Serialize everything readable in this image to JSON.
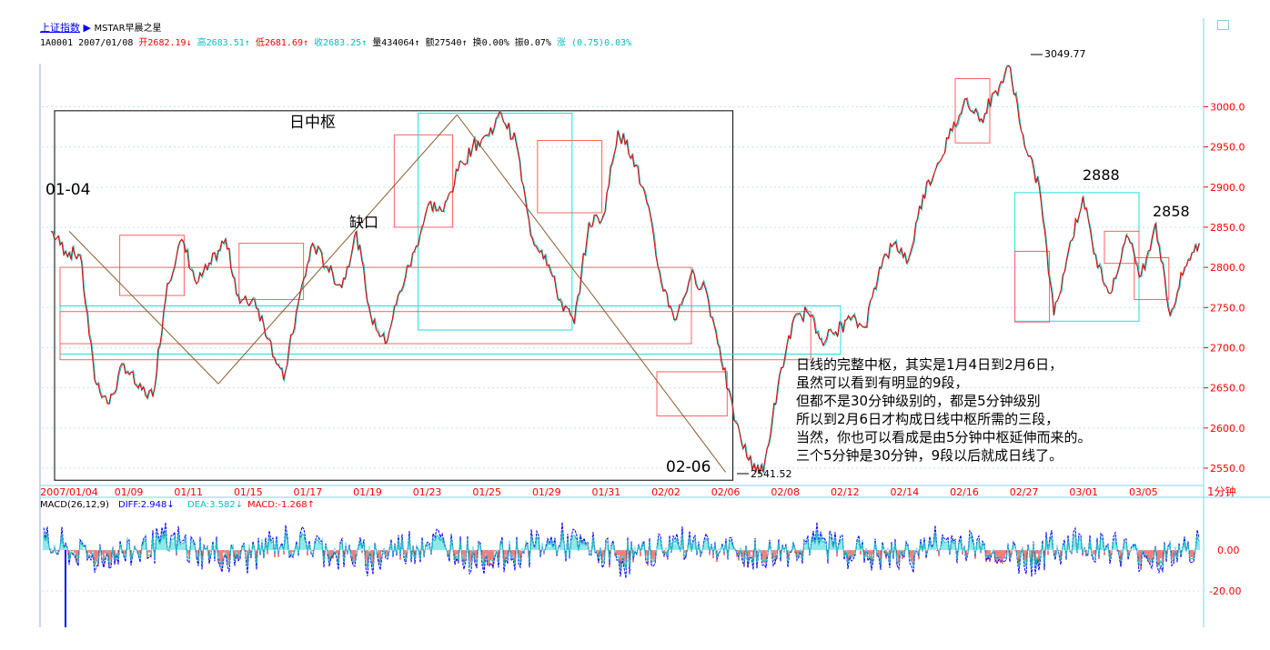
{
  "header": {
    "index_link": "上证指数",
    "arrow": "▶",
    "source": "MSTAR早晨之星",
    "code": "1A0001",
    "date": "2007/01/08",
    "open_label": "开",
    "open_value": "2682.19",
    "open_dir": "↓",
    "high_label": "高",
    "high_value": "2683.51",
    "high_dir": "↑",
    "low_label": "低",
    "low_value": "2681.69",
    "low_dir": "↑",
    "close_label": "收",
    "close_value": "2683.25",
    "close_dir": "↑",
    "vol_label": "量",
    "vol_value": "434064",
    "vol_dir": "↑",
    "amt_label": "额",
    "amt_value": "27540",
    "amt_dir": "↑",
    "turn_label": "换",
    "turn_value": "0.00%",
    "amp_label": "振",
    "amp_value": "0.07%",
    "chg_label": "涨",
    "chg_value": "(0.75)0.03%"
  },
  "annotations": {
    "day_center": "日中枢",
    "gap": "缺口",
    "start": "01-04",
    "end": "02-06",
    "high_2888": "2888",
    "high_2858": "2858",
    "max_label": "3049.77",
    "min_label": "2541.52",
    "note_lines": [
      "日线的完整中枢，其实是1月4日到2月6日，",
      "虽然可以看到有明显的9段，",
      "但都不是30分钟级别的，都是5分钟级别",
      "所以到2月6日才构成日线中枢所需的三段，",
      "当然，你也可以看成是由5分钟中枢延伸而来的。",
      "三个5分钟是30分钟，9段以后就成日线了。"
    ]
  },
  "period_label": "1分钟",
  "macd": {
    "label": "MACD(26,12,9)",
    "diff_label": "DIFF:",
    "diff_value": "2.948",
    "diff_dir": "↓",
    "dea_label": "DEA:",
    "dea_value": "3.582",
    "dea_dir": "↓",
    "macd_label": "MACD:",
    "macd_value": "-1.268",
    "macd_dir": "↑",
    "y_ticks": [
      "0.00",
      "-20.00"
    ]
  },
  "chart_data": {
    "type": "line",
    "title": "",
    "x_labels": [
      "2007/01/04",
      "01/09",
      "01/11",
      "01/15",
      "01/17",
      "01/19",
      "01/23",
      "01/25",
      "01/29",
      "01/31",
      "02/02",
      "02/06",
      "02/08",
      "02/12",
      "02/14",
      "02/16",
      "02/27",
      "03/01",
      "03/05"
    ],
    "y_ticks": [
      3000,
      2950,
      2900,
      2850,
      2800,
      2750,
      2700,
      2650,
      2600,
      2550
    ],
    "ylim": [
      2533,
      3065
    ],
    "series": [
      {
        "values": [
          2845,
          2820,
          2815,
          2660,
          2630,
          2680,
          2650,
          2640,
          2780,
          2835,
          2780,
          2805,
          2835,
          2755,
          2760,
          2710,
          2660,
          2755,
          2830,
          2800,
          2775,
          2845,
          2740,
          2705,
          2770,
          2820,
          2880,
          2870,
          2920,
          2950,
          2965,
          2990,
          2955,
          2840,
          2815,
          2760,
          2730,
          2855,
          2865,
          2970,
          2940,
          2880,
          2780,
          2735,
          2790,
          2775,
          2700,
          2610,
          2560,
          2545,
          2650,
          2730,
          2745,
          2710,
          2720,
          2735,
          2725,
          2800,
          2830,
          2810,
          2890,
          2930,
          2970,
          3010,
          2985,
          3020,
          3049,
          2950,
          2900,
          2740,
          2820,
          2888,
          2800,
          2770,
          2840,
          2790,
          2855,
          2740,
          2800,
          2830
        ]
      }
    ],
    "pivot_line": [
      {
        "date": "01/04",
        "value": 2845
      },
      {
        "date": "01/12",
        "value": 2655
      },
      {
        "date": "01/24",
        "value": 2990
      },
      {
        "date": "02/06",
        "value": 2545
      }
    ],
    "boxes": [
      {
        "color": "red",
        "from": "01/09",
        "to": "01/10",
        "low": 2765,
        "high": 2840
      },
      {
        "color": "red",
        "from": "01/15",
        "to": "01/16",
        "low": 2760,
        "high": 2830
      },
      {
        "color": "red",
        "from": "01/22",
        "to": "01/23",
        "low": 2850,
        "high": 2965
      },
      {
        "color": "cyan",
        "from": "01/23",
        "to": "01/29",
        "low": 2722,
        "high": 2992
      },
      {
        "color": "red",
        "from": "01/29",
        "to": "01/30",
        "low": 2868,
        "high": 2958
      },
      {
        "color": "red",
        "from": "02/01",
        "to": "02/02",
        "low": 2705,
        "high": 2800
      },
      {
        "color": "red",
        "from": "02/02",
        "to": "02/05",
        "low": 2615,
        "high": 2670
      },
      {
        "color": "cyan",
        "from": "02/07",
        "to": "02/09",
        "low": 2692,
        "high": 2752
      },
      {
        "color": "red",
        "from": "02/07",
        "to": "02/08",
        "low": 2685,
        "high": 2745
      },
      {
        "color": "red",
        "from": "02/16",
        "to": "02/16",
        "low": 2955,
        "high": 3035
      },
      {
        "color": "cyan",
        "from": "02/27",
        "to": "03/02",
        "low": 2733,
        "high": 2893
      },
      {
        "color": "red",
        "from": "02/27",
        "to": "02/27",
        "low": 2732,
        "high": 2820
      },
      {
        "color": "red",
        "from": "03/02",
        "to": "03/02",
        "low": 2805,
        "high": 2845
      },
      {
        "color": "red",
        "from": "03/05",
        "to": "03/05",
        "low": 2760,
        "high": 2812
      }
    ],
    "frame_box": {
      "from": "01/04",
      "to": "02/06",
      "low": 2535,
      "high": 2995
    },
    "grid": true
  }
}
